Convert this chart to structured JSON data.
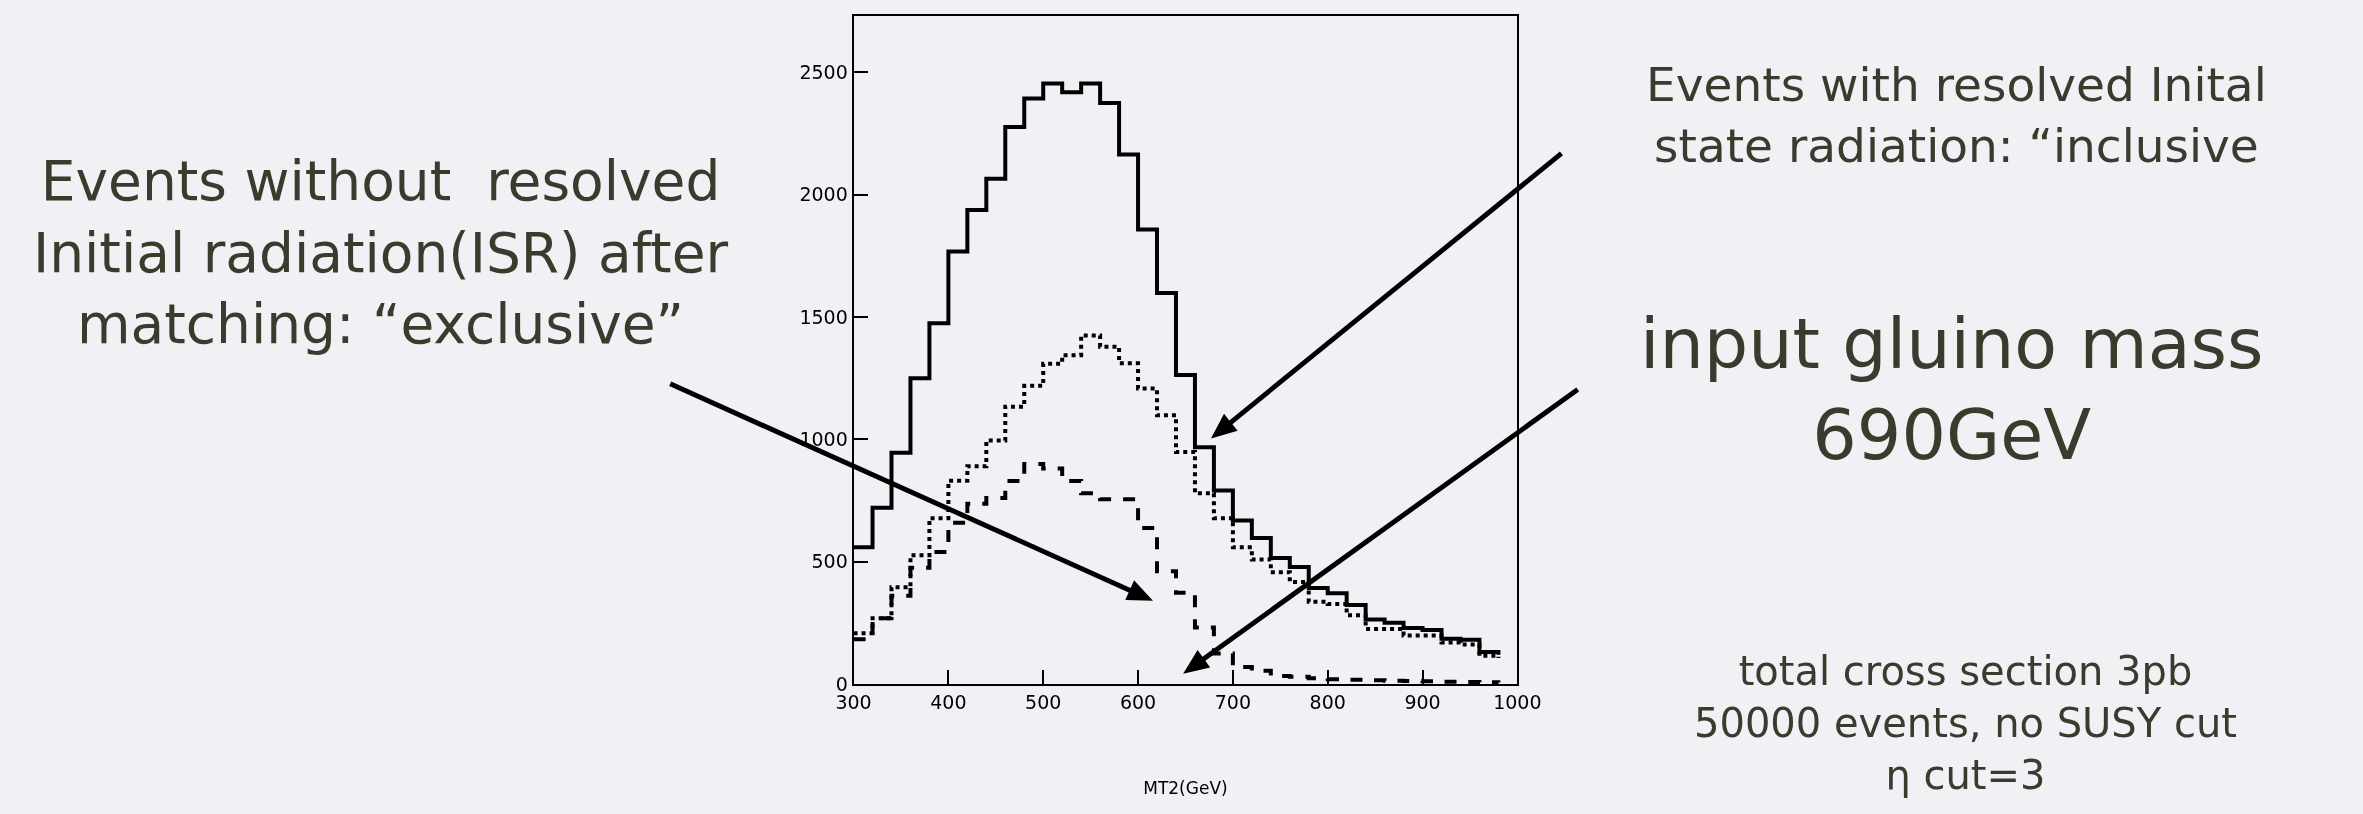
{
  "chart_data": {
    "type": "step",
    "xlabel": "MT2(GeV)",
    "x": [
      300,
      320,
      340,
      360,
      380,
      400,
      420,
      440,
      460,
      480,
      500,
      520,
      540,
      560,
      580,
      600,
      620,
      640,
      660,
      680,
      700,
      720,
      740,
      760,
      780,
      800,
      820,
      840,
      860,
      880,
      900,
      920,
      940,
      960,
      980
    ],
    "series": [
      {
        "color": "#000000",
        "line_style": "solid",
        "values": [
          559,
          721,
          946,
          1250,
          1475,
          1768,
          1938,
          2065,
          2277,
          2393,
          2454,
          2419,
          2454,
          2375,
          2164,
          1858,
          1598,
          1263,
          968,
          791,
          669,
          597,
          516,
          479,
          393,
          371,
          323,
          264,
          251,
          229,
          221,
          186,
          181,
          131,
          120
        ]
      },
      {
        "color": "#000000",
        "line_style": "dotted",
        "values": [
          208,
          269,
          396,
          527,
          678,
          831,
          890,
          996,
          1134,
          1219,
          1309,
          1344,
          1425,
          1379,
          1311,
          1208,
          1099,
          949,
          780,
          678,
          559,
          509,
          457,
          417,
          337,
          328,
          282,
          225,
          225,
          199,
          199,
          170,
          162,
          116,
          107
        ]
      },
      {
        "color": "#000000",
        "line_style": "dashed",
        "values": [
          184,
          269,
          361,
          476,
          540,
          660,
          737,
          761,
          830,
          900,
          881,
          830,
          780,
          756,
          756,
          638,
          461,
          374,
          232,
          125,
          70,
          55,
          33,
          30,
          24,
          20,
          18,
          16,
          14,
          13,
          12,
          10,
          9,
          8,
          7
        ]
      }
    ],
    "xlim": [
      300,
      1000
    ],
    "ylim": [
      0,
      2730
    ],
    "xticks": [
      300,
      400,
      500,
      600,
      700,
      800,
      900,
      1000
    ],
    "yticks": [
      0,
      500,
      1000,
      1500,
      2000,
      2500
    ],
    "annotations": [
      "Events without  resolved\nInitial radiation(ISR) after\nmatching: “exclusive”",
      "Events with resolved Inital\nstate radiation: “inclusive",
      "input gluino mass\n690GeV",
      "total cross section 3pb\n50000 events, no SUSY cut\nη cut=3"
    ]
  }
}
